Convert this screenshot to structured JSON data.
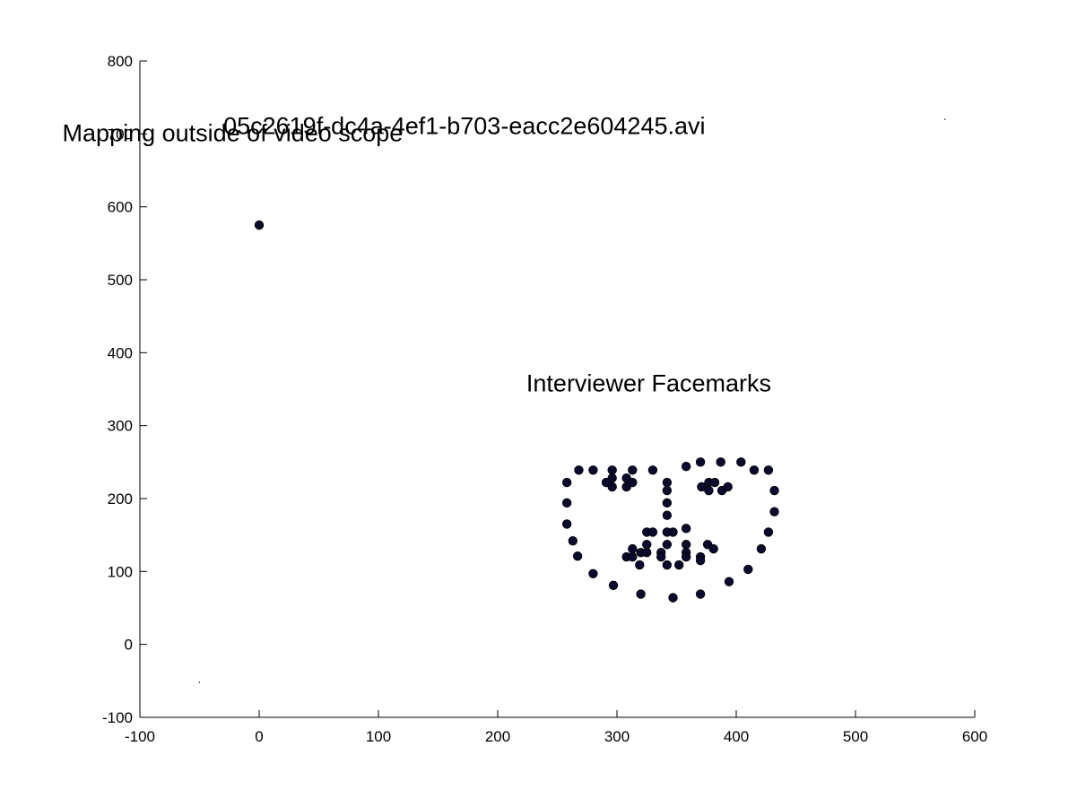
{
  "chart_data": {
    "type": "scatter",
    "xlim": [
      -100,
      600
    ],
    "ylim": [
      -100,
      800
    ],
    "xticks": [
      "-100",
      "0",
      "100",
      "200",
      "300",
      "400",
      "500",
      "600"
    ],
    "yticks": [
      "-100",
      "0",
      "100",
      "200",
      "300",
      "400",
      "500",
      "600",
      "700",
      "800"
    ],
    "grid": false,
    "marker_color": "#0a0a2e",
    "annotations": [
      {
        "id": "filename",
        "text": "05c2619f-dc4a-4ef1-b703-eacc2e604245.avi",
        "x": -30,
        "y": 700
      },
      {
        "id": "outside-scope",
        "text": "Mapping outside of video scope",
        "x": -165,
        "y": 690
      },
      {
        "id": "facemarks",
        "text": "Interviewer Facemarks",
        "x": 224,
        "y": 347
      }
    ],
    "series": [
      {
        "points": [
          [
            0,
            575
          ],
          [
            258,
            222
          ],
          [
            258,
            194
          ],
          [
            258,
            165
          ],
          [
            263,
            142
          ],
          [
            267,
            121
          ],
          [
            280,
            97
          ],
          [
            297,
            81
          ],
          [
            320,
            69
          ],
          [
            347,
            64
          ],
          [
            370,
            69
          ],
          [
            394,
            86
          ],
          [
            410,
            103
          ],
          [
            421,
            131
          ],
          [
            427,
            154
          ],
          [
            432,
            182
          ],
          [
            432,
            211
          ],
          [
            427,
            239
          ],
          [
            415,
            239
          ],
          [
            404,
            250
          ],
          [
            387,
            250
          ],
          [
            370,
            250
          ],
          [
            358,
            244
          ],
          [
            268,
            239
          ],
          [
            280,
            239
          ],
          [
            296,
            239
          ],
          [
            296,
            228
          ],
          [
            296,
            216
          ],
          [
            291,
            222
          ],
          [
            308,
            228
          ],
          [
            308,
            216
          ],
          [
            313,
            239
          ],
          [
            313,
            222
          ],
          [
            330,
            239
          ],
          [
            342,
            222
          ],
          [
            342,
            211
          ],
          [
            342,
            194
          ],
          [
            342,
            177
          ],
          [
            342,
            154
          ],
          [
            347,
            154
          ],
          [
            325,
            154
          ],
          [
            330,
            154
          ],
          [
            358,
            159
          ],
          [
            371,
            216
          ],
          [
            377,
            222
          ],
          [
            377,
            211
          ],
          [
            382,
            222
          ],
          [
            388,
            211
          ],
          [
            393,
            216
          ],
          [
            308,
            120
          ],
          [
            313,
            131
          ],
          [
            313,
            120
          ],
          [
            319,
            109
          ],
          [
            320,
            126
          ],
          [
            325,
            137
          ],
          [
            325,
            126
          ],
          [
            337,
            126
          ],
          [
            337,
            120
          ],
          [
            342,
            137
          ],
          [
            342,
            109
          ],
          [
            352,
            109
          ],
          [
            358,
            137
          ],
          [
            358,
            126
          ],
          [
            358,
            120
          ],
          [
            370,
            120
          ],
          [
            370,
            115
          ],
          [
            376,
            137
          ],
          [
            381,
            131
          ]
        ]
      }
    ],
    "stray_marks": [
      [
        -50,
        -52
      ],
      [
        575,
        720
      ]
    ]
  }
}
